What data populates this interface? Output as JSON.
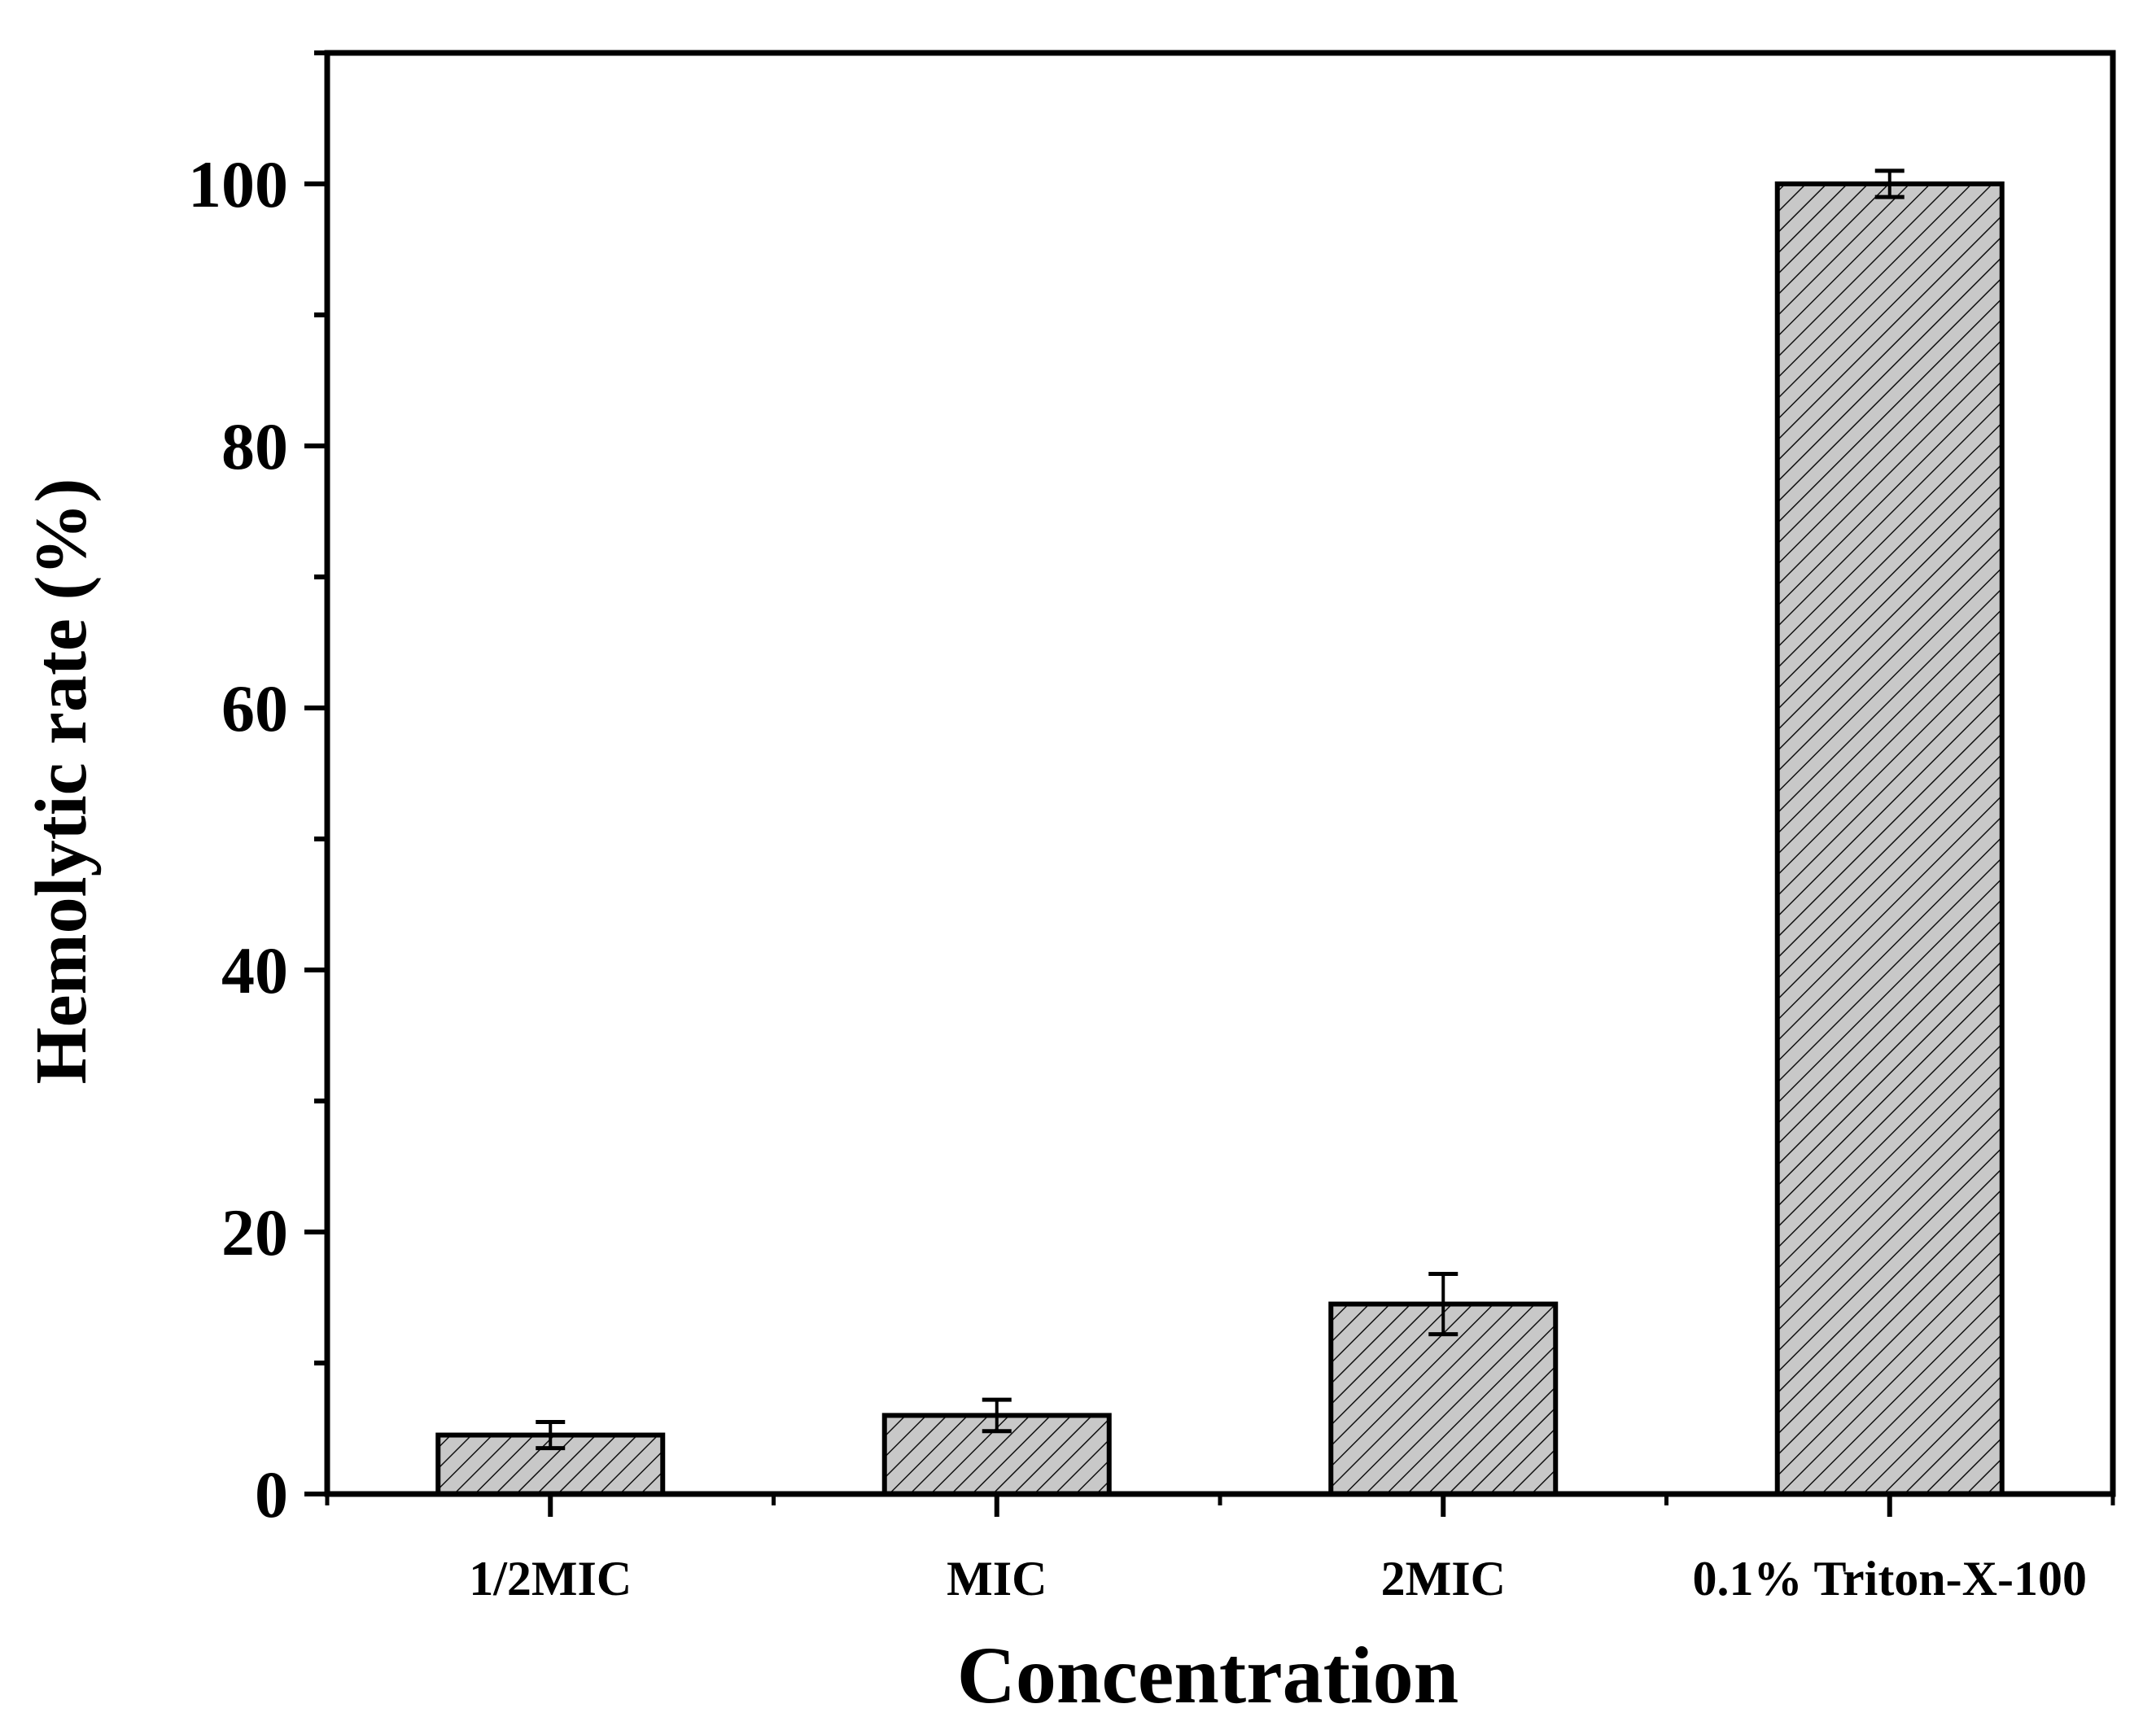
{
  "chart_data": {
    "type": "bar",
    "title": "",
    "xlabel": "Concentration",
    "ylabel": "Hemolytic rate (%)",
    "categories": [
      "1/2MIC",
      "MIC",
      "2MIC",
      "0.1% Triton-X-100"
    ],
    "series": [
      {
        "values": [
          4.5,
          6.0,
          14.5,
          100.0
        ],
        "errors": [
          1.0,
          1.2,
          2.3,
          1.0
        ]
      }
    ],
    "ylim": [
      0,
      110
    ],
    "yticks": [
      0,
      20,
      40,
      60,
      80,
      100
    ],
    "ytick_labels": [
      "0",
      "20",
      "40",
      "60",
      "80",
      "100"
    ],
    "grid": false,
    "legend": "none",
    "bar_fill": "#c8c8c8",
    "bar_pattern": "diagonal-hatch",
    "axis_color": "#000000"
  }
}
